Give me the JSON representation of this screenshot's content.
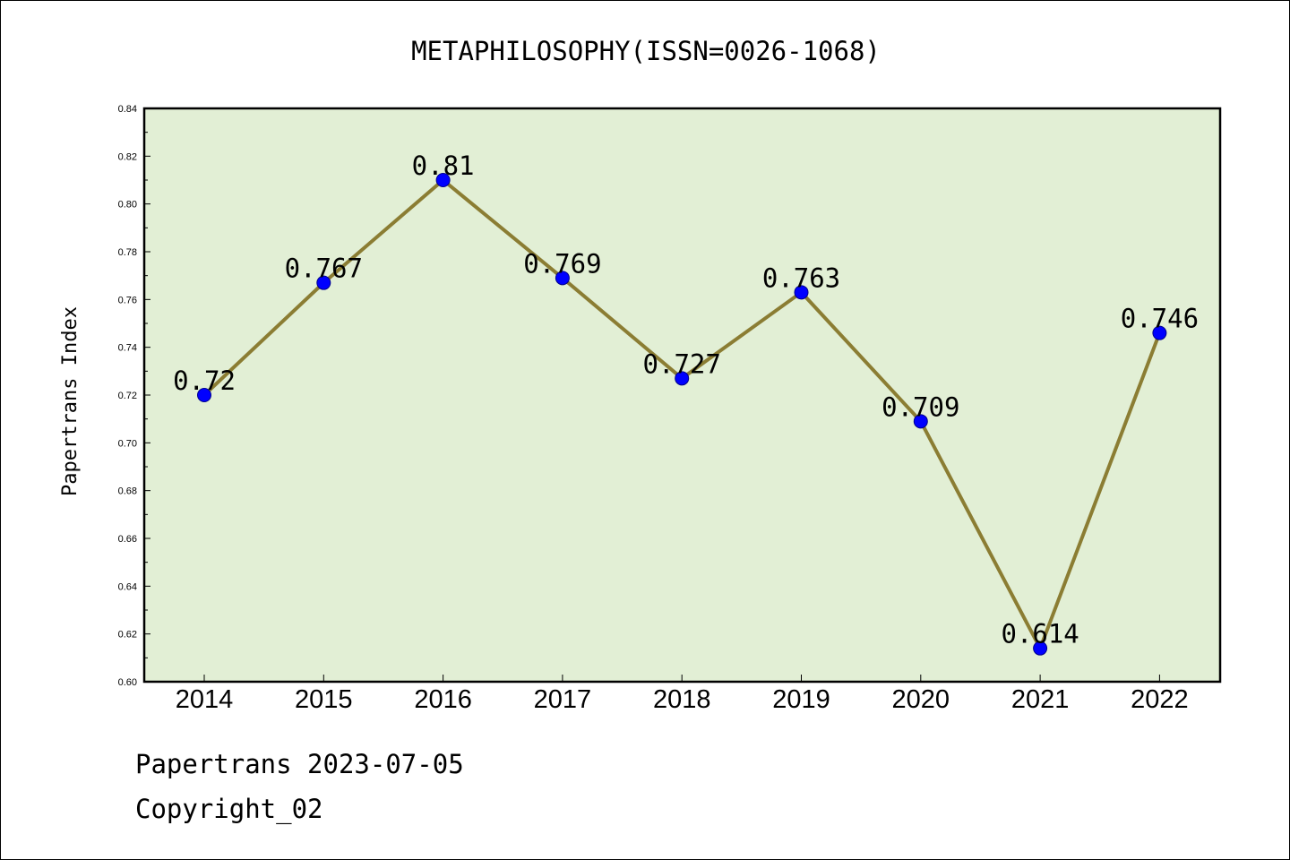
{
  "chart_data": {
    "type": "line",
    "title": "METAPHILOSOPHY(ISSN=0026-1068)",
    "xlabel": "",
    "ylabel": "Papertrans Index",
    "categories": [
      "2014",
      "2015",
      "2016",
      "2017",
      "2018",
      "2019",
      "2020",
      "2021",
      "2022"
    ],
    "series": [
      {
        "values": [
          0.72,
          0.767,
          0.81,
          0.769,
          0.727,
          0.763,
          0.709,
          0.614,
          0.746
        ]
      }
    ],
    "data_labels": [
      "0.72",
      "0.767",
      "0.81",
      "0.769",
      "0.727",
      "0.763",
      "0.709",
      "0.614",
      "0.746"
    ],
    "ylim": [
      0.6,
      0.84
    ],
    "yticks": [
      "0.60",
      "0.62",
      "0.64",
      "0.66",
      "0.68",
      "0.70",
      "0.72",
      "0.74",
      "0.76",
      "0.78",
      "0.80",
      "0.82",
      "0.84"
    ],
    "grid": false,
    "legend": "none",
    "colors": {
      "plot_background": "#e2efd5",
      "line": "#8b7d33",
      "marker_fill": "#0000ff",
      "marker_edge": "#00008b"
    }
  },
  "footer": {
    "date_text": "Papertrans 2023-07-05",
    "copyright_text": "Copyright_02"
  }
}
